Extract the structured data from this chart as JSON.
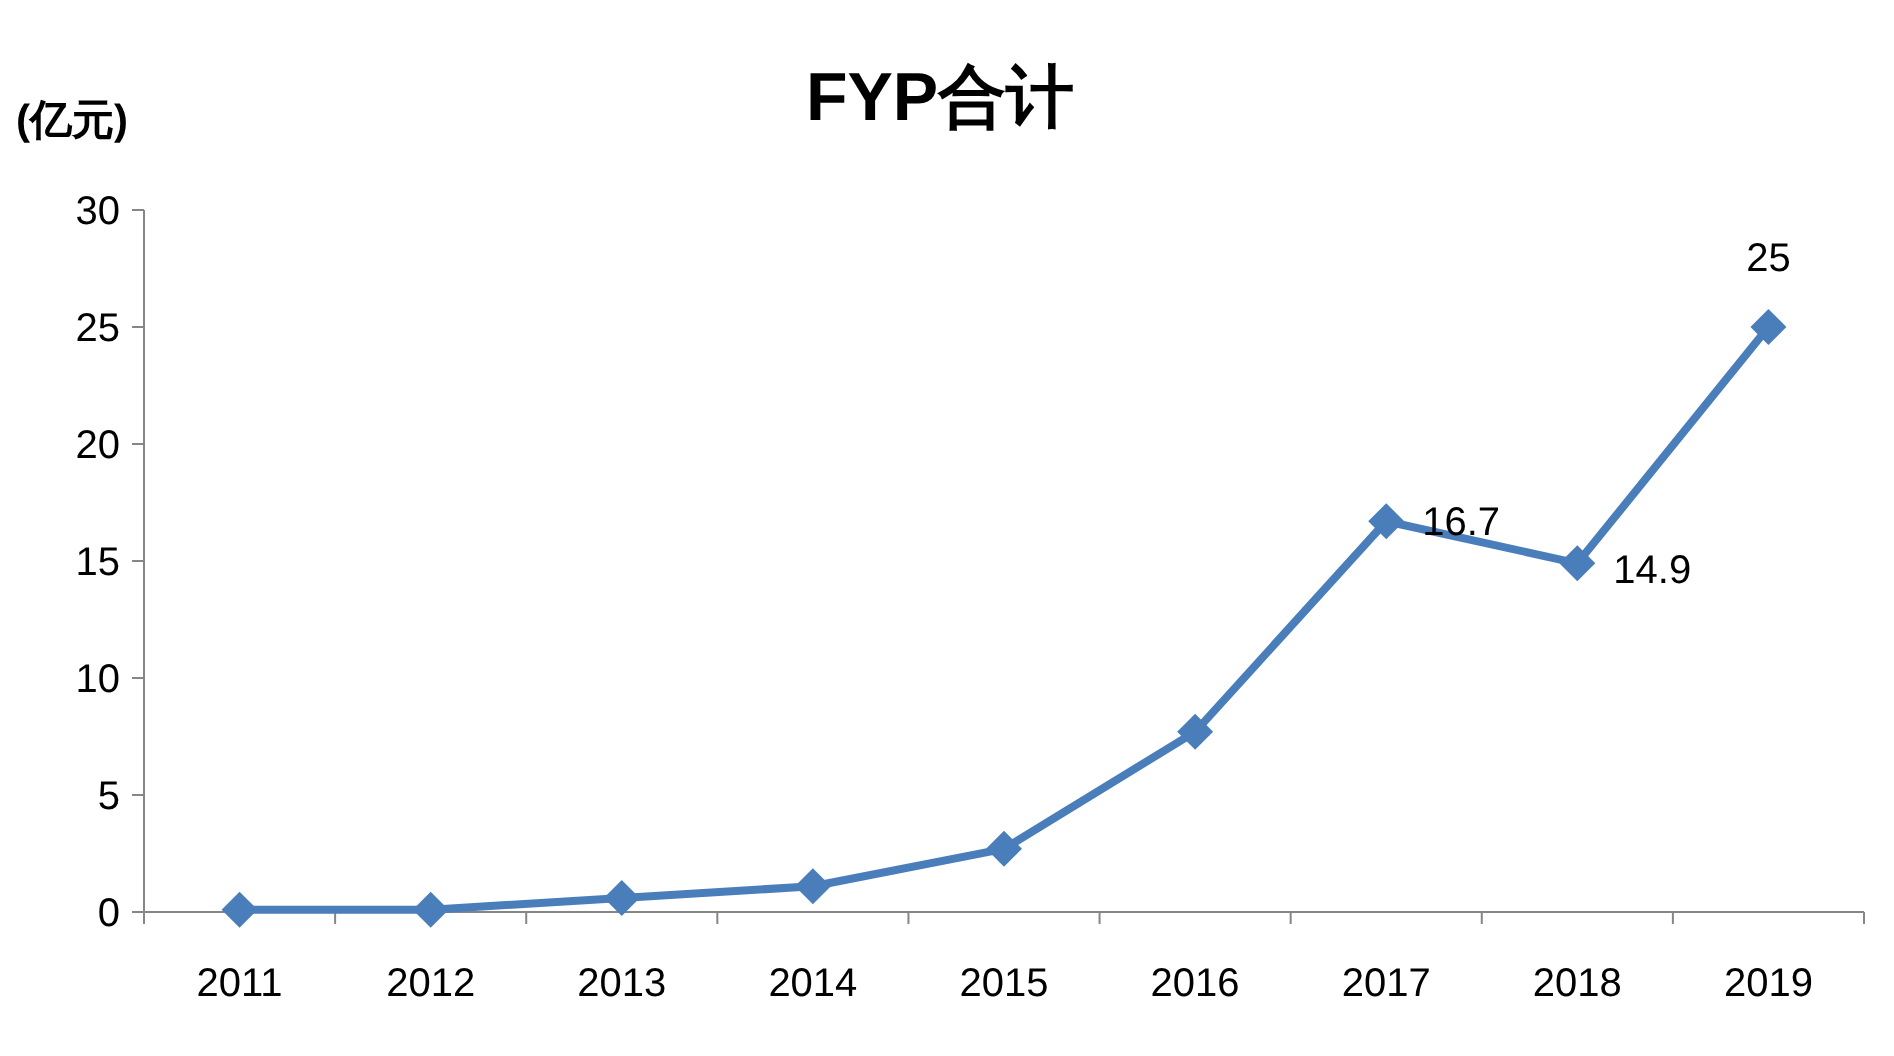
{
  "chart_data": {
    "type": "line",
    "title": "FYP合计",
    "ylabel": "(亿元)",
    "categories": [
      "2011",
      "2012",
      "2013",
      "2014",
      "2015",
      "2016",
      "2017",
      "2018",
      "2019"
    ],
    "series": [
      {
        "color": "#4a7ebb",
        "values": [
          0.1,
          0.1,
          0.6,
          1.1,
          2.7,
          7.7,
          16.7,
          14.9,
          25
        ],
        "value_labels": [
          null,
          null,
          null,
          null,
          null,
          null,
          "16.7",
          "14.9",
          "25"
        ]
      }
    ],
    "ylim": [
      0,
      30
    ],
    "yticks": [
      0,
      5,
      10,
      15,
      20,
      25,
      30
    ],
    "marker": "diamond",
    "line_style": "solid"
  }
}
